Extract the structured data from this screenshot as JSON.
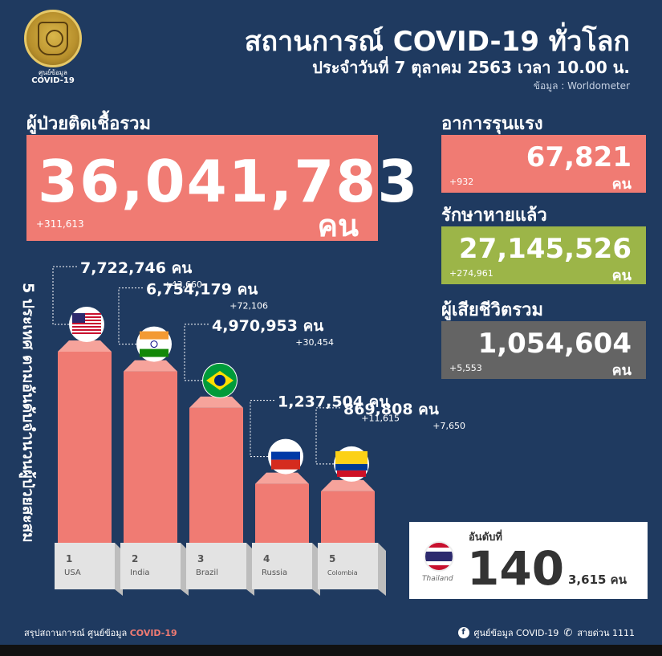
{
  "header": {
    "org_line1": "ศูนย์ข้อมูล",
    "org_line2": "COVID-19",
    "title": "สถานการณ์ COVID-19 ทั่วโลก",
    "subtitle": "ประจำวันที่ 7 ตุลาคม 2563 เวลา 10.00 น.",
    "source": "ข้อมูล : Worldometer"
  },
  "total": {
    "label": "ผู้ป่วยติดเชื้อรวม",
    "value": "36,041,783",
    "unit": "คน",
    "delta": "+311,613"
  },
  "critical": {
    "label": "อาการรุนแรง",
    "value": "67,821",
    "unit": "คน",
    "delta": "+932"
  },
  "recovered": {
    "label": "รักษาหายแล้ว",
    "value": "27,145,526",
    "unit": "คน",
    "delta": "+274,961"
  },
  "deaths": {
    "label": "ผู้เสียชีวิตรวม",
    "value": "1,054,604",
    "unit": "คน",
    "delta": "+5,553"
  },
  "chart_data": {
    "type": "bar",
    "title": "5 ประเทศ ตามอันดับจำนวนผู้ป่วยสะสม",
    "unit": "คน",
    "categories": [
      "USA",
      "India",
      "Brazil",
      "Russia",
      "Colombia"
    ],
    "ranks": [
      "1",
      "2",
      "3",
      "4",
      "5"
    ],
    "values": [
      7722746,
      6754179,
      4970953,
      1237504,
      869808
    ],
    "value_labels": [
      "7,722,746",
      "6,754,179",
      "4,970,953",
      "1,237,504",
      "869,808"
    ],
    "deltas": [
      "+43,660",
      "+72,106",
      "+30,454",
      "+11,615",
      "+7,650"
    ],
    "flags": [
      "usa-flag",
      "india-flag",
      "brazil-flag",
      "russia-flag",
      "colombia-flag"
    ]
  },
  "thailand": {
    "rank_label": "อันดับที่",
    "rank": "140",
    "name": "Thailand",
    "cases": "3,615 คน"
  },
  "footer": {
    "left_text": "สรุปสถานการณ์ ศูนย์ข้อมูล",
    "left_highlight": "COVID-19",
    "facebook_icon": "facebook-icon",
    "facebook_text": "ศูนย์ข้อมูล COVID-19",
    "phone_icon": "phone-icon",
    "hotline_text": "สายด่วน 1111"
  },
  "colors": {
    "background": "#1f3a60",
    "bar": "#f07b73",
    "bar_top": "#f6a39b",
    "bar_side": "#d9645c",
    "recovered": "#9cb548",
    "deaths": "#646464"
  }
}
